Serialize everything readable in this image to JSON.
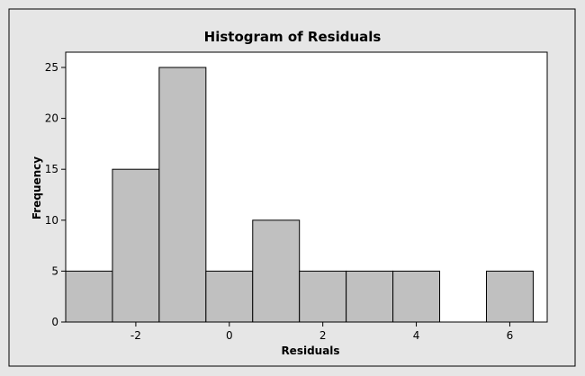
{
  "chart_data": {
    "type": "bar",
    "subtype": "histogram",
    "title": "Histogram of Residuals",
    "xlabel": "Residuals",
    "ylabel": "Frequency",
    "xlim": [
      -3.5,
      6.8
    ],
    "ylim": [
      0,
      26.5
    ],
    "bin_width": 1,
    "bins": [
      {
        "center": -3,
        "count": 5
      },
      {
        "center": -2,
        "count": 15
      },
      {
        "center": -1,
        "count": 25
      },
      {
        "center": 0,
        "count": 5
      },
      {
        "center": 1,
        "count": 10
      },
      {
        "center": 2,
        "count": 5
      },
      {
        "center": 3,
        "count": 5
      },
      {
        "center": 4,
        "count": 5
      },
      {
        "center": 5,
        "count": 0
      },
      {
        "center": 6,
        "count": 5
      }
    ],
    "x_ticks": [
      -2,
      0,
      2,
      4,
      6
    ],
    "y_ticks": [
      0,
      5,
      10,
      15,
      20,
      25
    ],
    "grid": false,
    "colors": {
      "background": "#e6e6e6",
      "plot_background": "#ffffff",
      "bar_fill": "#c0c0c0",
      "bar_edge": "#000000"
    }
  }
}
